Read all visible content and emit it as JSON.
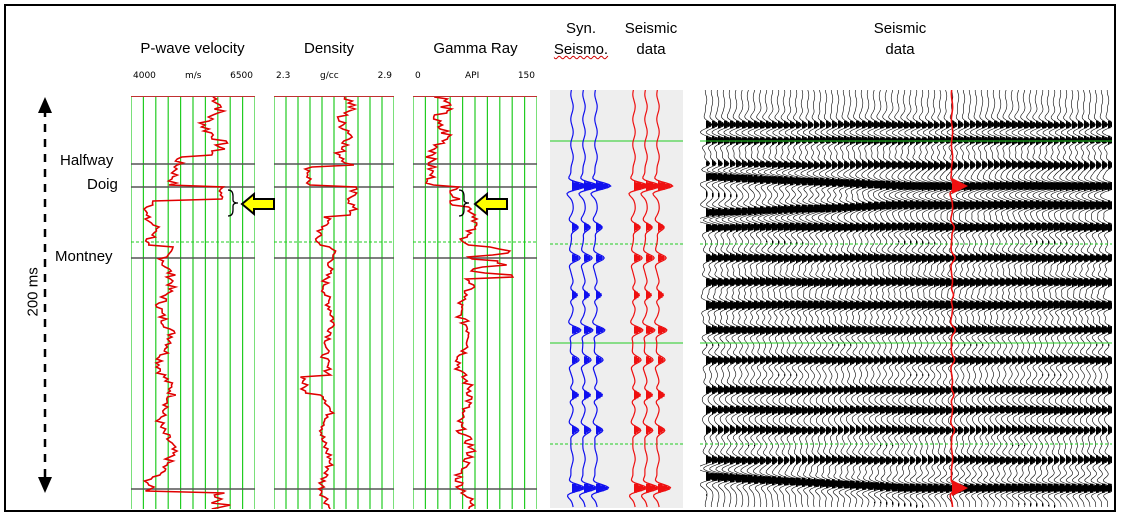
{
  "columns": {
    "pwave": {
      "title": "P-wave velocity",
      "min": "4000",
      "unit": "m/s",
      "max": "6500"
    },
    "density": {
      "title": "Density",
      "min": "2.3",
      "unit": "g/cc",
      "max": "2.9"
    },
    "gamma": {
      "title": "Gamma Ray",
      "min": "0",
      "unit": "API",
      "max": "150"
    },
    "synthetic": {
      "title_line1": "Syn.",
      "title_line2": "Seismo."
    },
    "seismic_trace": {
      "title_line1": "Seismic",
      "title_line2": "data"
    },
    "seismic_section": {
      "title_line1": "Seismic",
      "title_line2": "data"
    }
  },
  "horizons": [
    "Halfway",
    "Doig",
    "Montney"
  ],
  "time_scale": {
    "label": "200 ms"
  },
  "colors": {
    "log_curve": "#e00000",
    "grid": "#22cc22",
    "horizon_line": "#555555",
    "synthetic": "#1010ee",
    "seismic": "#ee1010",
    "arrow_fill": "#ffff00",
    "section_fill": "#000000"
  },
  "icons": [
    "arrow-left-icon",
    "bracket-icon",
    "double-arrow-icon"
  ]
}
